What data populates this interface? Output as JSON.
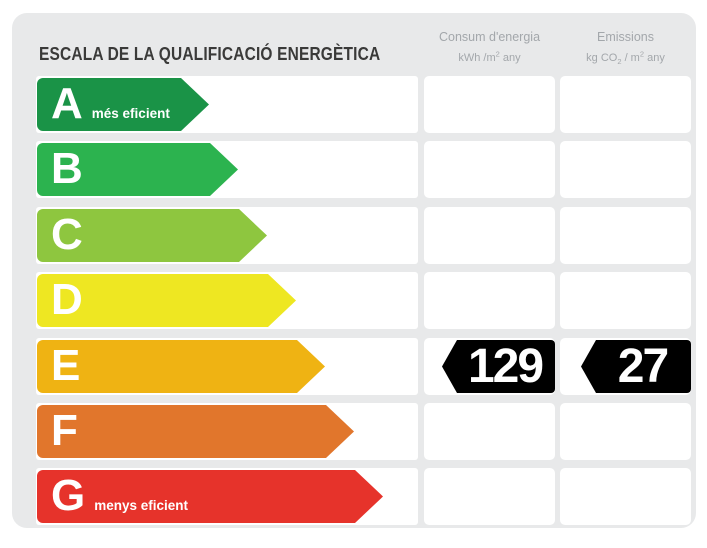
{
  "title": "ESCALA DE LA QUALIFICACIÓ ENERGÈTICA",
  "card_bg": "#e8e9ea",
  "badge_color": "#000000",
  "header_text_color": "#a3a7ab",
  "columns": {
    "consum": {
      "label": "Consum d'energia",
      "unit_parts": [
        {
          "text": "kWh /m"
        },
        {
          "text": "2",
          "style": "sup"
        },
        {
          "text": "  any"
        }
      ]
    },
    "emissions": {
      "label": "Emissions",
      "unit_parts": [
        {
          "text": "kg CO"
        },
        {
          "text": "2",
          "style": "sub"
        },
        {
          "text": " / m"
        },
        {
          "text": "2",
          "style": "sup"
        },
        {
          "text": "  any"
        }
      ]
    }
  },
  "rows": [
    {
      "letter": "A",
      "note": "més eficient",
      "color": "#1a9347",
      "values": {
        "consum": "",
        "emissions": ""
      }
    },
    {
      "letter": "B",
      "note": "",
      "color": "#2cb34f",
      "values": {
        "consum": "",
        "emissions": ""
      }
    },
    {
      "letter": "C",
      "note": "",
      "color": "#8ec63f",
      "values": {
        "consum": "",
        "emissions": ""
      }
    },
    {
      "letter": "D",
      "note": "",
      "color": "#eee722",
      "values": {
        "consum": "",
        "emissions": ""
      }
    },
    {
      "letter": "E",
      "note": "",
      "color": "#efb313",
      "values": {
        "consum": "129",
        "emissions": "27"
      }
    },
    {
      "letter": "F",
      "note": "",
      "color": "#e1762c",
      "values": {
        "consum": "",
        "emissions": ""
      }
    },
    {
      "letter": "G",
      "note": "menys eficient",
      "color": "#e6332b",
      "values": {
        "consum": "",
        "emissions": ""
      }
    }
  ],
  "chart_data": {
    "type": "bar",
    "title": "ESCALA DE LA QUALIFICACIÓ ENERGÈTICA",
    "categories": [
      "A",
      "B",
      "C",
      "D",
      "E",
      "F",
      "G"
    ],
    "category_colors": [
      "#1a9347",
      "#2cb34f",
      "#8ec63f",
      "#eee722",
      "#efb313",
      "#e1762c",
      "#e6332b"
    ],
    "series": [
      {
        "name": "Consum d'energia (kWh/m² any)",
        "values": [
          null,
          null,
          null,
          null,
          129,
          null,
          null
        ]
      },
      {
        "name": "Emissions (kg CO₂/m² any)",
        "values": [
          null,
          null,
          null,
          null,
          27,
          null,
          null
        ]
      }
    ],
    "current_rating": "E",
    "annotations": [
      "A més eficient",
      "G menys eficient"
    ],
    "legend_position": "top",
    "grid": false
  }
}
